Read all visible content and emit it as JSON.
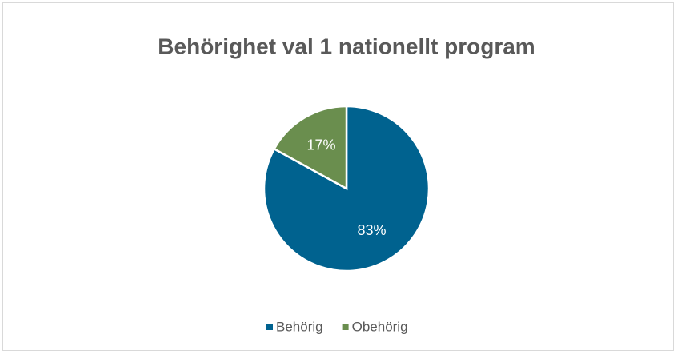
{
  "chart_data": {
    "type": "pie",
    "title": "Behörighet val 1 nationellt program",
    "categories": [
      "Behörig",
      "Obehörig"
    ],
    "values": [
      83,
      17
    ],
    "value_labels": [
      "83%",
      "17%"
    ],
    "colors": [
      "#00628f",
      "#6a8e4e"
    ],
    "legend": "bottom"
  }
}
